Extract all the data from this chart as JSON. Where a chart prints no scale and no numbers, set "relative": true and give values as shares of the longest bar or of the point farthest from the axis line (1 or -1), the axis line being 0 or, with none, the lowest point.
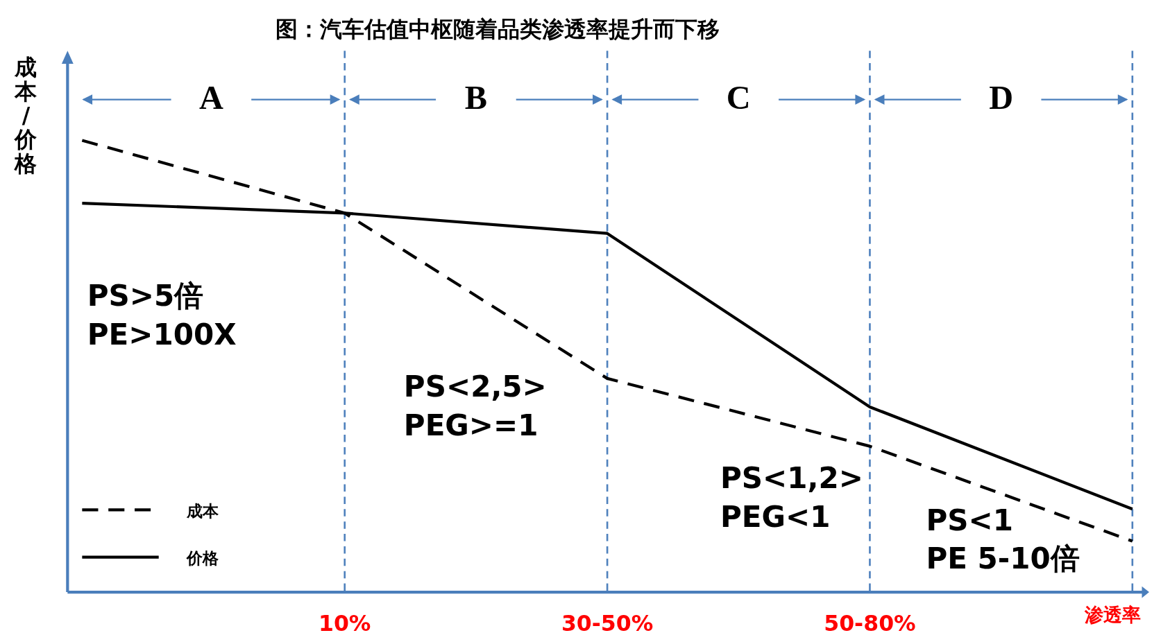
{
  "chart_data": {
    "type": "line",
    "title": "图：汽车估值中枢随着品类渗透率提升而下移",
    "xlabel": "渗透率",
    "ylabel": "成本/价格",
    "relative": true,
    "categories": [
      null,
      "10%",
      "30-50%",
      "50-80%",
      null
    ],
    "series": [
      {
        "name": "成本",
        "color": "#000000",
        "line_style": "dashed",
        "values": [
          1,
          0.839,
          0.473,
          0.323,
          0.113
        ]
      },
      {
        "name": "价格",
        "color": "#000000",
        "line_style": "solid",
        "values": [
          0.861,
          0.839,
          0.794,
          0.41,
          0.184
        ]
      }
    ],
    "ref_lines": [
      {
        "axis": "x",
        "value": "10%",
        "label": "A"
      },
      {
        "axis": "x",
        "value": "30-50%",
        "label": "B"
      },
      {
        "axis": "x",
        "value": "50-80%",
        "label": "C"
      },
      {
        "axis": "x",
        "value": null,
        "label": "D"
      }
    ],
    "annotations": [
      "PS>5倍\nPE>100X",
      "PS<2,5>\nPEG>=1",
      "PS<1,2>\nPEG<1",
      "PS<1\nPE 5-10倍"
    ],
    "marker": "none",
    "legend": "bottom left"
  }
}
